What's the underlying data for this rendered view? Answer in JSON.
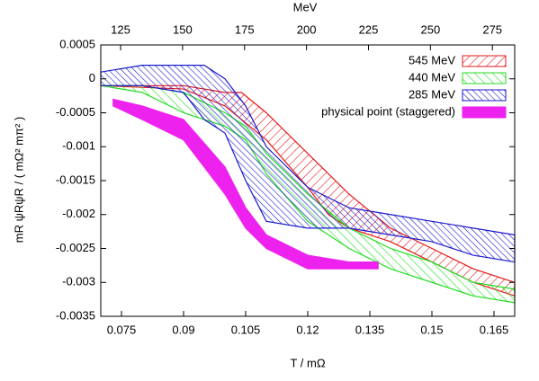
{
  "chart_data": {
    "type": "band",
    "x_label": "T / mΩ",
    "x2_label": "MeV",
    "y_label": "mR ψRψR / ( mΩ² mπ² )",
    "xlim": [
      0.07,
      0.17
    ],
    "xticks": [
      0.075,
      0.09,
      0.105,
      0.12,
      0.135,
      0.15,
      0.165
    ],
    "x2lim": [
      117,
      284
    ],
    "x2ticks": [
      125,
      150,
      175,
      200,
      225,
      250,
      275
    ],
    "ylim": [
      -0.0035,
      0.0005
    ],
    "yticks": [
      0.0005,
      0,
      -0.0005,
      -0.001,
      -0.0015,
      -0.002,
      -0.0025,
      -0.003,
      -0.0035
    ],
    "legend": "top-right",
    "series": [
      {
        "name": "545 MeV",
        "color": "#e41a1c",
        "x": [
          0.07,
          0.09,
          0.1,
          0.104,
          0.11,
          0.12,
          0.125,
          0.13,
          0.14,
          0.15,
          0.16,
          0.17
        ],
        "upper": [
          -0.0001,
          -0.0001,
          -0.0002,
          -0.0002,
          -0.0005,
          -0.0011,
          -0.0014,
          -0.0017,
          -0.0022,
          -0.0025,
          -0.0028,
          -0.003
        ],
        "lower": [
          -0.0001,
          -0.00015,
          -0.0004,
          -0.0006,
          -0.0009,
          -0.0016,
          -0.002,
          -0.0022,
          -0.0024,
          -0.0027,
          -0.003,
          -0.0032
        ]
      },
      {
        "name": "440 MeV",
        "color": "#22dd22",
        "x": [
          0.07,
          0.08,
          0.09,
          0.1,
          0.105,
          0.11,
          0.12,
          0.13,
          0.14,
          0.15,
          0.16,
          0.17
        ],
        "upper": [
          -0.0001,
          -0.0001,
          -0.0002,
          -0.0005,
          -0.0007,
          -0.0011,
          -0.0017,
          -0.0022,
          -0.0025,
          -0.0027,
          -0.003,
          -0.0031
        ],
        "lower": [
          -0.0001,
          -0.0002,
          -0.0005,
          -0.0007,
          -0.0009,
          -0.0014,
          -0.0021,
          -0.0025,
          -0.0028,
          -0.003,
          -0.0032,
          -0.0033
        ]
      },
      {
        "name": "285 MeV",
        "color": "#1a1acc",
        "x": [
          0.07,
          0.08,
          0.09,
          0.095,
          0.1,
          0.105,
          0.11,
          0.12,
          0.13,
          0.14,
          0.15,
          0.16,
          0.17
        ],
        "upper": [
          0.0001,
          0.0002,
          0.0002,
          0.0002,
          0,
          -0.0004,
          -0.001,
          -0.0016,
          -0.0019,
          -0.002,
          -0.0021,
          -0.0022,
          -0.0023
        ],
        "lower": [
          -0.0001,
          -0.0001,
          -0.0002,
          -0.0006,
          -0.0008,
          -0.0015,
          -0.0021,
          -0.0022,
          -0.0022,
          -0.0023,
          -0.0024,
          -0.0026,
          -0.0027
        ]
      },
      {
        "name": "physical point (staggered)",
        "color": "#ee22ee",
        "x": [
          0.073,
          0.08,
          0.09,
          0.1,
          0.105,
          0.11,
          0.12,
          0.13,
          0.137
        ],
        "upper": [
          -0.0003,
          -0.0004,
          -0.0006,
          -0.0013,
          -0.0019,
          -0.0023,
          -0.0026,
          -0.0027,
          -0.0027
        ],
        "lower": [
          -0.0004,
          -0.0006,
          -0.0009,
          -0.0017,
          -0.0022,
          -0.0025,
          -0.0028,
          -0.0028,
          -0.0028
        ]
      }
    ]
  }
}
